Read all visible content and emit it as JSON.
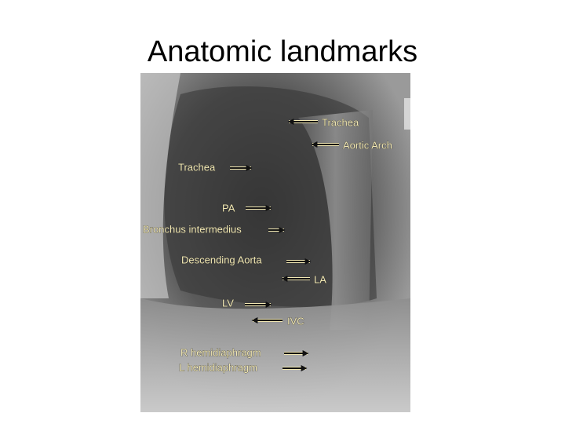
{
  "title": "Anatomic landmarks",
  "labels": [
    "Trachea",
    "Aortic Arch",
    "Trachea",
    "PA",
    "Bronchus intermedius",
    "Descending Aorta",
    "LA",
    "LV",
    "IVC",
    "R hemidiaphragm",
    "L hemidiaphragm"
  ]
}
